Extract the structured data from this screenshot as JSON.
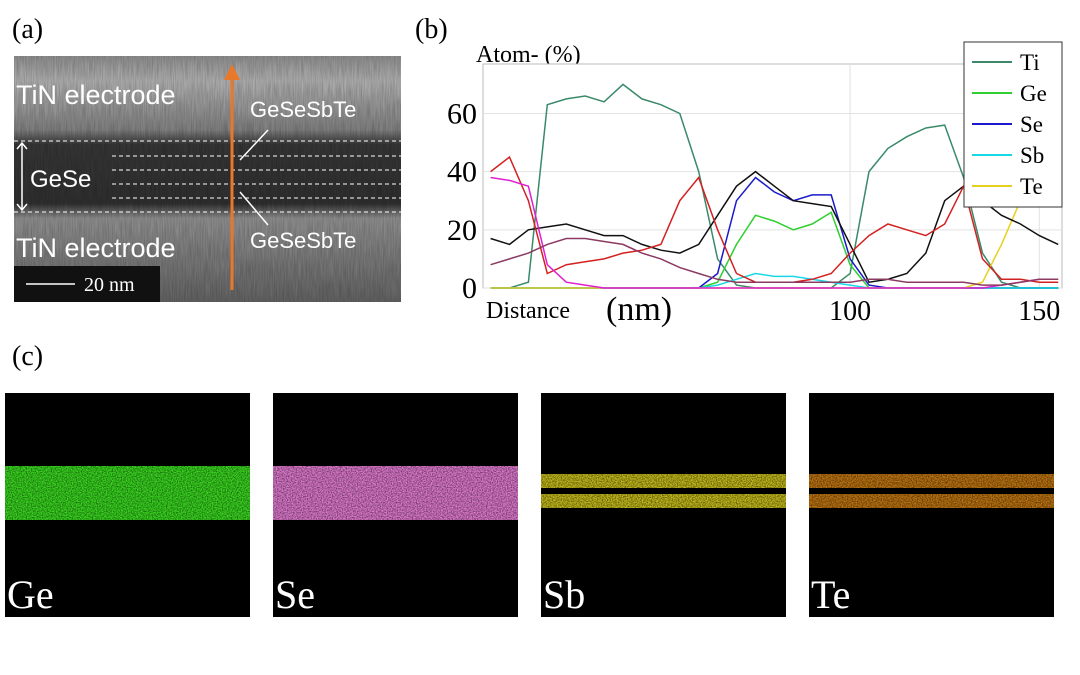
{
  "panel_a": {
    "label": "(a)",
    "texts": {
      "top_electrode": "TiN electrode",
      "upper_layer": "GeSeSbTe",
      "middle_layer": "GeSe",
      "lower_layer": "GeSeSbTe",
      "bottom_electrode": "TiN electrode",
      "scale_bar": "20 nm"
    }
  },
  "panel_b_label": "(b)",
  "chart_data": {
    "type": "line",
    "y_label": "Atom- (%)",
    "x_label": "Distance",
    "x_unit": "(nm)",
    "x": [
      5,
      10,
      15,
      20,
      25,
      30,
      35,
      40,
      45,
      50,
      55,
      60,
      65,
      70,
      75,
      80,
      85,
      90,
      95,
      100,
      105,
      110,
      115,
      120,
      125,
      130,
      135,
      140,
      145,
      150,
      155
    ],
    "xlim": [
      3,
      156
    ],
    "xticks": [
      100,
      150
    ],
    "ylim": [
      0,
      77
    ],
    "yticks": [
      0,
      20,
      40,
      60
    ],
    "grid": true,
    "legend": "upper right",
    "series": [
      {
        "name": "Ti",
        "color": "#3a8a6a",
        "values": [
          0,
          0,
          2,
          63,
          65,
          66,
          64,
          70,
          65,
          63,
          60,
          40,
          10,
          1,
          0,
          0,
          0,
          0,
          0,
          5,
          40,
          48,
          52,
          55,
          56,
          38,
          12,
          2,
          0,
          0,
          0
        ]
      },
      {
        "name": "Ge",
        "color": "#2fd02f",
        "values": [
          0,
          0,
          0,
          0,
          0,
          0,
          0,
          0,
          0,
          0,
          0,
          0,
          2,
          15,
          25,
          23,
          20,
          22,
          26,
          8,
          0,
          0,
          0,
          0,
          0,
          0,
          0,
          0,
          0,
          0,
          0
        ]
      },
      {
        "name": "Se",
        "color": "#1a1acc",
        "values": [
          0,
          0,
          0,
          0,
          0,
          0,
          0,
          0,
          0,
          0,
          0,
          0,
          5,
          30,
          38,
          33,
          30,
          32,
          32,
          10,
          1,
          0,
          0,
          0,
          0,
          0,
          0,
          0,
          0,
          0,
          0
        ]
      },
      {
        "name": "Sb",
        "color": "#18d8e8",
        "values": [
          0,
          0,
          0,
          0,
          0,
          0,
          0,
          0,
          0,
          0,
          0,
          0,
          1,
          3,
          5,
          4,
          4,
          3,
          2,
          1,
          0,
          0,
          0,
          0,
          0,
          0,
          0,
          0,
          0,
          0,
          0
        ]
      },
      {
        "name": "Te",
        "color": "#e8d020",
        "values": [
          0,
          0,
          0,
          0,
          0,
          0,
          0,
          0,
          0,
          0,
          0,
          0,
          0,
          0,
          0,
          0,
          0,
          0,
          0,
          0,
          0,
          0,
          0,
          0,
          0,
          0,
          2,
          15,
          30,
          38,
          40
        ]
      },
      {
        "color": "#111111",
        "values": [
          17,
          15,
          20,
          21,
          22,
          20,
          18,
          18,
          15,
          13,
          12,
          15,
          25,
          35,
          40,
          35,
          30,
          29,
          28,
          15,
          2,
          3,
          5,
          12,
          30,
          35,
          30,
          25,
          22,
          18,
          15
        ]
      },
      {
        "color": "#d42020",
        "values": [
          40,
          45,
          30,
          5,
          8,
          9,
          10,
          12,
          13,
          15,
          30,
          38,
          20,
          5,
          2,
          2,
          2,
          3,
          5,
          12,
          18,
          22,
          20,
          18,
          22,
          35,
          10,
          3,
          3,
          2,
          2
        ]
      },
      {
        "color": "#e020d0",
        "values": [
          38,
          37,
          35,
          8,
          2,
          1,
          0,
          0,
          0,
          0,
          0,
          0,
          0,
          0,
          0,
          0,
          0,
          0,
          0,
          0,
          0,
          0,
          0,
          0,
          0,
          0,
          0,
          1,
          2,
          3,
          3
        ]
      },
      {
        "color": "#8b3a62",
        "values": [
          8,
          10,
          12,
          15,
          17,
          17,
          16,
          15,
          12,
          10,
          7,
          5,
          3,
          2,
          2,
          2,
          2,
          2,
          2,
          2,
          3,
          3,
          2,
          2,
          2,
          2,
          1,
          1,
          2,
          3,
          3
        ]
      }
    ]
  },
  "panel_c": {
    "label": "(c)",
    "maps": [
      {
        "label": "Ge",
        "color": "#3ad820"
      },
      {
        "label": "Se",
        "color": "#e07ad0"
      },
      {
        "label": "Sb",
        "color": "#e6dc20"
      },
      {
        "label": "Te",
        "color": "#e08a14"
      }
    ]
  }
}
